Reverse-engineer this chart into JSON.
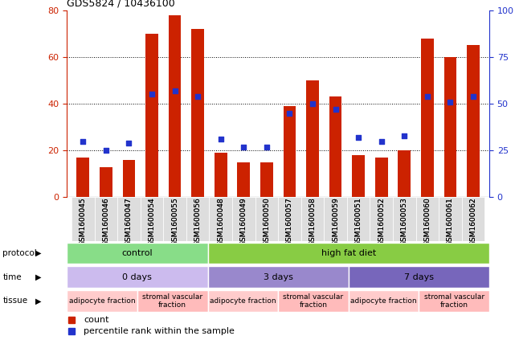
{
  "title": "GDS5824 / 10436100",
  "samples": [
    "GSM1600045",
    "GSM1600046",
    "GSM1600047",
    "GSM1600054",
    "GSM1600055",
    "GSM1600056",
    "GSM1600048",
    "GSM1600049",
    "GSM1600050",
    "GSM1600057",
    "GSM1600058",
    "GSM1600059",
    "GSM1600051",
    "GSM1600052",
    "GSM1600053",
    "GSM1600060",
    "GSM1600061",
    "GSM1600062"
  ],
  "counts": [
    17,
    13,
    16,
    70,
    78,
    72,
    19,
    15,
    15,
    39,
    50,
    43,
    18,
    17,
    20,
    68,
    60,
    65
  ],
  "percentile_ranks": [
    30,
    25,
    29,
    55,
    57,
    54,
    31,
    27,
    27,
    45,
    50,
    47,
    32,
    30,
    33,
    54,
    51,
    54
  ],
  "ylim_left": [
    0,
    80
  ],
  "ylim_right": [
    0,
    100
  ],
  "yticks_left": [
    0,
    20,
    40,
    60,
    80
  ],
  "yticks_right": [
    0,
    25,
    50,
    75,
    100
  ],
  "bar_color": "#cc2200",
  "dot_color": "#2233cc",
  "bg_color": "#ffffff",
  "protocol_groups": [
    {
      "label": "control",
      "start": 0,
      "end": 6,
      "color": "#88dd88"
    },
    {
      "label": "high fat diet",
      "start": 6,
      "end": 18,
      "color": "#88cc44"
    }
  ],
  "time_groups": [
    {
      "label": "0 days",
      "start": 0,
      "end": 6,
      "color": "#ccbbee"
    },
    {
      "label": "3 days",
      "start": 6,
      "end": 12,
      "color": "#9988cc"
    },
    {
      "label": "7 days",
      "start": 12,
      "end": 18,
      "color": "#7766bb"
    }
  ],
  "tissue_groups": [
    {
      "label": "adipocyte fraction",
      "start": 0,
      "end": 3,
      "color": "#ffcccc"
    },
    {
      "label": "stromal vascular\nfraction",
      "start": 3,
      "end": 6,
      "color": "#ffbbbb"
    },
    {
      "label": "adipocyte fraction",
      "start": 6,
      "end": 9,
      "color": "#ffcccc"
    },
    {
      "label": "stromal vascular\nfraction",
      "start": 9,
      "end": 12,
      "color": "#ffbbbb"
    },
    {
      "label": "adipocyte fraction",
      "start": 12,
      "end": 15,
      "color": "#ffcccc"
    },
    {
      "label": "stromal vascular\nfraction",
      "start": 15,
      "end": 18,
      "color": "#ffbbbb"
    }
  ],
  "row_labels": [
    "protocol",
    "time",
    "tissue"
  ],
  "legend_count_label": "count",
  "legend_pct_label": "percentile rank within the sample",
  "bar_width": 0.55
}
